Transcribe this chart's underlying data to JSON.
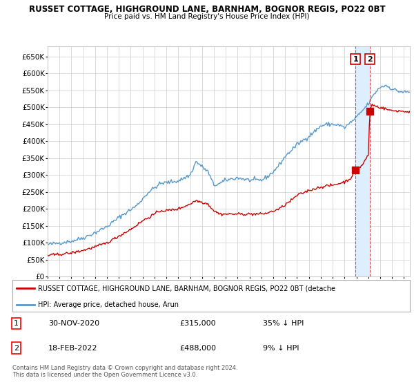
{
  "title1": "RUSSET COTTAGE, HIGHGROUND LANE, BARNHAM, BOGNOR REGIS, PO22 0BT",
  "title2": "Price paid vs. HM Land Registry's House Price Index (HPI)",
  "ylim": [
    0,
    680000
  ],
  "yticks": [
    0,
    50000,
    100000,
    150000,
    200000,
    250000,
    300000,
    350000,
    400000,
    450000,
    500000,
    550000,
    600000,
    650000
  ],
  "xlim_start": 1995.0,
  "xlim_end": 2025.5,
  "legend_line1": "RUSSET COTTAGE, HIGHGROUND LANE, BARNHAM, BOGNOR REGIS, PO22 0BT (detache",
  "legend_line2": "HPI: Average price, detached house, Arun",
  "annotation1_label": "1",
  "annotation1_date": "30-NOV-2020",
  "annotation1_price": "£315,000",
  "annotation1_hpi": "35% ↓ HPI",
  "annotation2_label": "2",
  "annotation2_date": "18-FEB-2022",
  "annotation2_price": "£488,000",
  "annotation2_hpi": "9% ↓ HPI",
  "footer": "Contains HM Land Registry data © Crown copyright and database right 2024.\nThis data is licensed under the Open Government Licence v3.0.",
  "red_color": "#cc0000",
  "blue_color": "#5599cc",
  "shade_color": "#ddeeff",
  "background_color": "#ffffff",
  "grid_color": "#cccccc",
  "sale1_x": 2020.917,
  "sale1_y": 315000,
  "sale2_x": 2022.13,
  "sale2_y": 488000
}
